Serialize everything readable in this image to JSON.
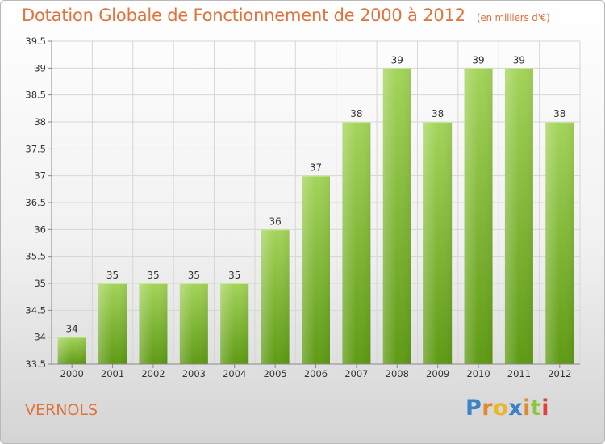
{
  "header": {
    "title": "Dotation Globale de Fonctionnement de 2000 à 2012",
    "unit": "(en milliers d'€)"
  },
  "footer": {
    "town": "VERNOLS",
    "logo": [
      "P",
      "r",
      "o",
      "x",
      "i",
      "t",
      "i"
    ],
    "logo_colors": [
      "#3d82c4",
      "#e08b2f",
      "#e8b72a",
      "#3d82c4",
      "#e08b2f",
      "#8cc63f",
      "#e0403a"
    ]
  },
  "chart_data": {
    "type": "bar",
    "title": "Dotation Globale de Fonctionnement de 2000 à 2012",
    "xlabel": "",
    "ylabel": "",
    "categories": [
      "2000",
      "2001",
      "2002",
      "2003",
      "2004",
      "2005",
      "2006",
      "2007",
      "2008",
      "2009",
      "2010",
      "2011",
      "2012"
    ],
    "values": [
      34,
      35,
      35,
      35,
      35,
      36,
      37,
      38,
      39,
      38,
      39,
      39,
      38
    ],
    "ylim": [
      33.5,
      39.5
    ],
    "yticks": [
      33.5,
      34,
      34.5,
      35,
      35.5,
      36,
      36.5,
      37,
      37.5,
      38,
      38.5,
      39,
      39.5
    ],
    "ytick_labels": [
      "33.5",
      "34",
      "34.5",
      "35",
      "35.5",
      "36",
      "36.5",
      "37",
      "37.5",
      "38",
      "38.5",
      "39",
      "39.5"
    ],
    "bar_color": "#7dbb2e",
    "grid": true
  }
}
